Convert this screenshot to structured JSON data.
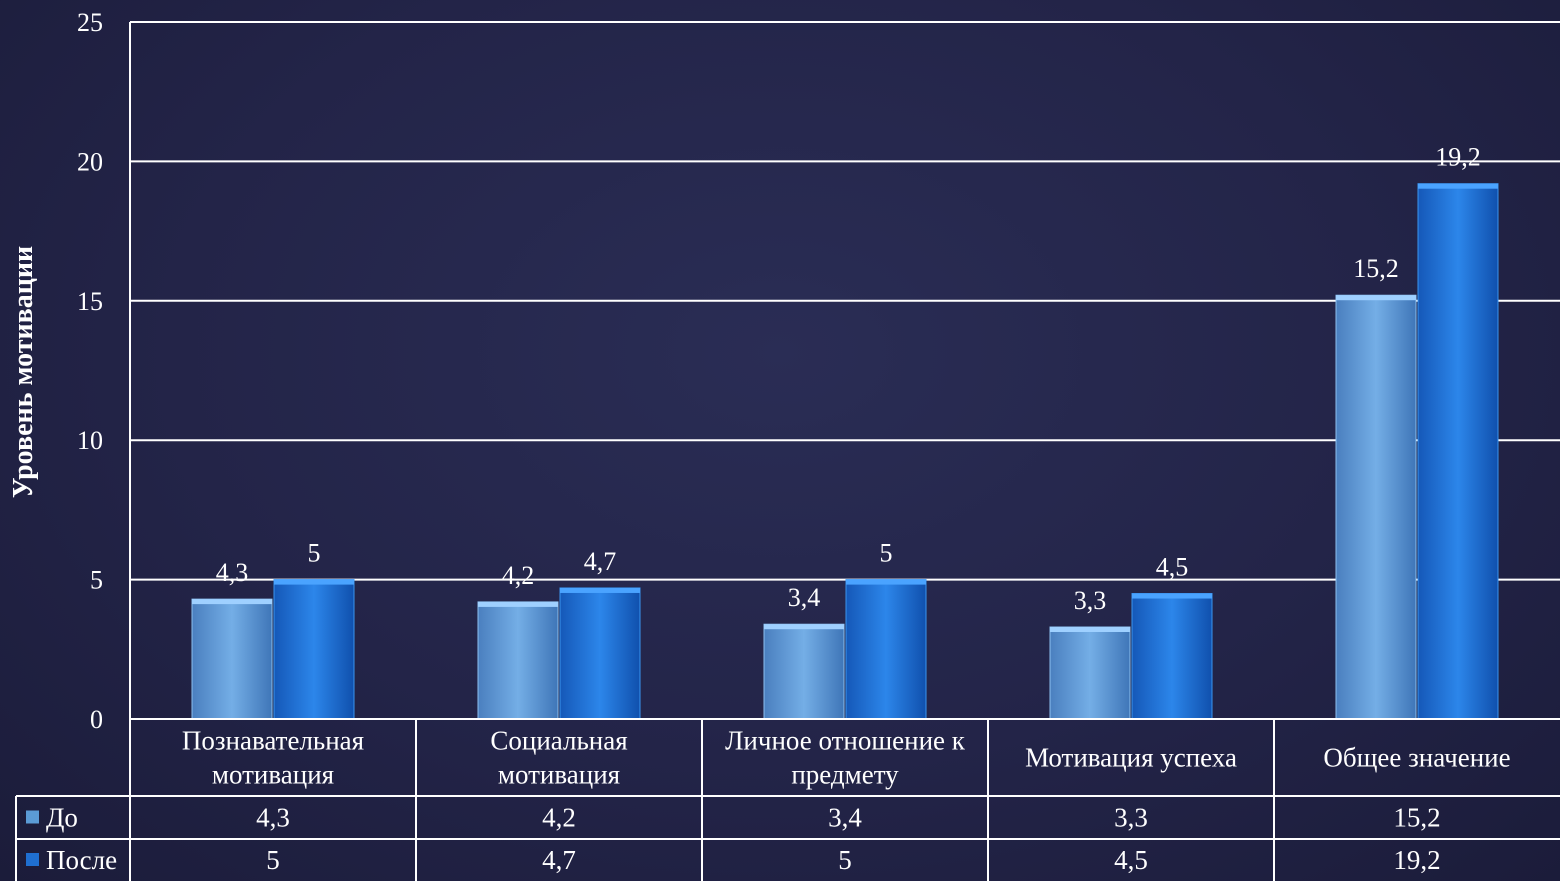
{
  "chart_data": {
    "type": "bar",
    "title": "",
    "xlabel": "",
    "ylabel": "Уровень мотивации",
    "ylim": [
      0,
      25
    ],
    "yticks": [
      0,
      5,
      10,
      15,
      20,
      25
    ],
    "grid": true,
    "legend": "data-table-left",
    "categories": [
      [
        "Познавательная",
        "мотивация"
      ],
      [
        "Социальная",
        "мотивация"
      ],
      [
        "Личное отношение к",
        "предмету"
      ],
      [
        "Мотивация успеха"
      ],
      [
        "Общее значение"
      ]
    ],
    "series": [
      {
        "name": "До",
        "values": [
          4.3,
          4.2,
          3.4,
          3.3,
          15.2
        ],
        "labels": [
          "4,3",
          "4,2",
          "3,4",
          "3,3",
          "15,2"
        ],
        "color": "#5b9bd5"
      },
      {
        "name": "После",
        "values": [
          5,
          4.7,
          5,
          4.5,
          19.2
        ],
        "labels": [
          "5",
          "4,7",
          "5",
          "4,5",
          "19,2"
        ],
        "color": "#1f6fd1"
      }
    ]
  }
}
